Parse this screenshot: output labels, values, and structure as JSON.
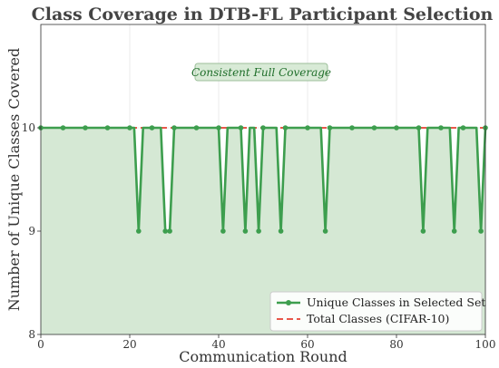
{
  "chart_data": {
    "type": "line",
    "title": "Class Coverage in DTB-FL Participant Selection",
    "xlabel": "Communication Round",
    "ylabel": "Number of Unique Classes Covered",
    "xlim": [
      0,
      100
    ],
    "ylim": [
      8,
      11
    ],
    "xticks": [
      "0",
      "20",
      "40",
      "60",
      "80",
      "100"
    ],
    "yticks": [
      "8",
      "9",
      "10"
    ],
    "grid": true,
    "legend_position": "lower-right",
    "annotation": "Consistent Full Coverage",
    "colors": {
      "series": "#3d9e4e",
      "reference": "#e8574a",
      "fill": "#d5e8d4",
      "annot_bg": "#d8ead6"
    },
    "series": [
      {
        "name": "Unique Classes in Selected Set",
        "x": [
          0,
          1,
          2,
          3,
          4,
          5,
          6,
          7,
          8,
          9,
          10,
          11,
          12,
          13,
          14,
          15,
          16,
          17,
          18,
          19,
          20,
          21,
          22,
          23,
          24,
          25,
          26,
          27,
          28,
          29,
          30,
          31,
          32,
          33,
          34,
          35,
          36,
          37,
          38,
          39,
          40,
          41,
          42,
          43,
          44,
          45,
          46,
          47,
          48,
          49,
          50,
          51,
          52,
          53,
          54,
          55,
          56,
          57,
          58,
          59,
          60,
          61,
          62,
          63,
          64,
          65,
          66,
          67,
          68,
          69,
          70,
          71,
          72,
          73,
          74,
          75,
          76,
          77,
          78,
          79,
          80,
          81,
          82,
          83,
          84,
          85,
          86,
          87,
          88,
          89,
          90,
          91,
          92,
          93,
          94,
          95,
          96,
          97,
          98,
          99,
          100
        ],
        "y": [
          10,
          10,
          10,
          10,
          10,
          10,
          10,
          10,
          10,
          10,
          10,
          10,
          10,
          10,
          10,
          10,
          10,
          10,
          10,
          10,
          10,
          10,
          9,
          10,
          10,
          10,
          10,
          10,
          9,
          9,
          10,
          10,
          10,
          10,
          10,
          10,
          10,
          10,
          10,
          10,
          10,
          9,
          10,
          10,
          10,
          10,
          9,
          10,
          10,
          9,
          10,
          10,
          10,
          10,
          9,
          10,
          10,
          10,
          10,
          10,
          10,
          10,
          10,
          10,
          9,
          10,
          10,
          10,
          10,
          10,
          10,
          10,
          10,
          10,
          10,
          10,
          10,
          10,
          10,
          10,
          10,
          10,
          10,
          10,
          10,
          10,
          9,
          10,
          10,
          10,
          10,
          10,
          10,
          9,
          10,
          10,
          10,
          10,
          10,
          9,
          10
        ]
      },
      {
        "name": "Total Classes (CIFAR-10)",
        "x": [
          0,
          100
        ],
        "y": [
          10,
          10
        ],
        "style": "dashed"
      }
    ]
  }
}
